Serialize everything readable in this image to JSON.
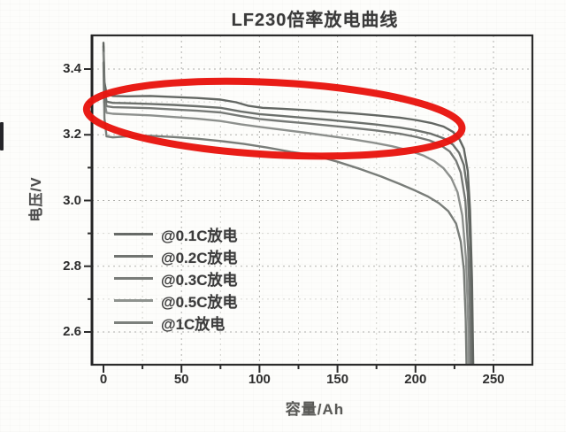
{
  "figure": {
    "kind": "scanned battery discharge chart with red highlight ellipse",
    "background_color": "#fdfdfb",
    "ink_color": "#2b2b2b",
    "grid_color": "#b0b0ac"
  },
  "chart_data": {
    "type": "line",
    "title": "LF230倍率放电曲线",
    "xlabel": "容量/Ah",
    "ylabel": "电压/V",
    "xlim": [
      -7,
      275
    ],
    "ylim": [
      2.5,
      3.5
    ],
    "x_ticks_major": [
      0,
      50,
      100,
      150,
      200,
      250
    ],
    "x_tick_labels": [
      "0",
      "50",
      "100",
      "150",
      "200",
      "250"
    ],
    "x_ticks_minor": [
      25,
      75,
      125,
      175,
      225
    ],
    "y_ticks_major": [
      3.4,
      3.2,
      3.0,
      2.8,
      2.6
    ],
    "y_tick_labels": [
      "3.4",
      "3.2",
      "3.0",
      "2.8",
      "2.6"
    ],
    "y_ticks_minor": [
      3.3,
      3.1,
      2.9,
      2.7
    ],
    "grid": "dashed, major and faint minor, both axes",
    "legend_position": "lower-left inside plot",
    "series": [
      {
        "name": "@0.1C放电",
        "color": "#565a56",
        "points": [
          [
            0,
            3.48
          ],
          [
            0.6,
            3.36
          ],
          [
            2,
            3.325
          ],
          [
            6,
            3.318
          ],
          [
            15,
            3.317
          ],
          [
            30,
            3.318
          ],
          [
            45,
            3.315
          ],
          [
            60,
            3.312
          ],
          [
            75,
            3.307
          ],
          [
            85,
            3.299
          ],
          [
            93,
            3.288
          ],
          [
            102,
            3.282
          ],
          [
            115,
            3.279
          ],
          [
            130,
            3.275
          ],
          [
            145,
            3.27
          ],
          [
            160,
            3.265
          ],
          [
            175,
            3.259
          ],
          [
            190,
            3.252
          ],
          [
            200,
            3.245
          ],
          [
            210,
            3.236
          ],
          [
            218,
            3.225
          ],
          [
            224,
            3.209
          ],
          [
            228,
            3.188
          ],
          [
            231,
            3.158
          ],
          [
            233.5,
            3.09
          ],
          [
            235,
            2.97
          ],
          [
            236.2,
            2.76
          ],
          [
            237,
            2.5
          ]
        ]
      },
      {
        "name": "@0.2C放电",
        "color": "#606460",
        "points": [
          [
            0,
            3.47
          ],
          [
            0.6,
            3.34
          ],
          [
            2,
            3.301
          ],
          [
            6,
            3.297
          ],
          [
            15,
            3.296
          ],
          [
            30,
            3.294
          ],
          [
            45,
            3.291
          ],
          [
            60,
            3.287
          ],
          [
            75,
            3.282
          ],
          [
            88,
            3.271
          ],
          [
            100,
            3.263
          ],
          [
            115,
            3.257
          ],
          [
            130,
            3.251
          ],
          [
            145,
            3.245
          ],
          [
            160,
            3.238
          ],
          [
            175,
            3.231
          ],
          [
            190,
            3.222
          ],
          [
            200,
            3.214
          ],
          [
            210,
            3.203
          ],
          [
            218,
            3.189
          ],
          [
            224,
            3.17
          ],
          [
            228,
            3.145
          ],
          [
            231,
            3.108
          ],
          [
            233.5,
            3.025
          ],
          [
            235,
            2.88
          ],
          [
            236,
            2.68
          ],
          [
            236.4,
            2.5
          ]
        ]
      },
      {
        "name": "@0.3C放电",
        "color": "#6a6e6a",
        "points": [
          [
            0,
            3.46
          ],
          [
            0.6,
            3.32
          ],
          [
            2,
            3.287
          ],
          [
            6,
            3.284
          ],
          [
            15,
            3.283
          ],
          [
            30,
            3.281
          ],
          [
            45,
            3.277
          ],
          [
            60,
            3.273
          ],
          [
            75,
            3.268
          ],
          [
            88,
            3.257
          ],
          [
            100,
            3.248
          ],
          [
            115,
            3.241
          ],
          [
            130,
            3.235
          ],
          [
            145,
            3.228
          ],
          [
            160,
            3.221
          ],
          [
            175,
            3.213
          ],
          [
            190,
            3.203
          ],
          [
            200,
            3.194
          ],
          [
            209,
            3.183
          ],
          [
            216,
            3.169
          ],
          [
            222,
            3.149
          ],
          [
            226,
            3.121
          ],
          [
            229,
            3.085
          ],
          [
            232,
            3.0
          ],
          [
            233.8,
            2.85
          ],
          [
            235,
            2.65
          ],
          [
            235.4,
            2.5
          ]
        ]
      },
      {
        "name": "@0.5C放电",
        "color": "#838783",
        "points": [
          [
            0,
            3.45
          ],
          [
            0.6,
            3.3
          ],
          [
            2,
            3.267
          ],
          [
            6,
            3.264
          ],
          [
            15,
            3.262
          ],
          [
            30,
            3.259
          ],
          [
            45,
            3.254
          ],
          [
            60,
            3.249
          ],
          [
            75,
            3.242
          ],
          [
            88,
            3.232
          ],
          [
            100,
            3.224
          ],
          [
            115,
            3.215
          ],
          [
            130,
            3.206
          ],
          [
            145,
            3.196
          ],
          [
            160,
            3.186
          ],
          [
            173,
            3.176
          ],
          [
            185,
            3.165
          ],
          [
            196,
            3.152
          ],
          [
            205,
            3.137
          ],
          [
            212,
            3.12
          ],
          [
            218,
            3.098
          ],
          [
            223,
            3.068
          ],
          [
            227,
            3.025
          ],
          [
            230,
            2.955
          ],
          [
            232.4,
            2.82
          ],
          [
            233.8,
            2.63
          ],
          [
            234.1,
            2.5
          ]
        ]
      },
      {
        "name": "@1C放电",
        "color": "#6e726e",
        "points": [
          [
            0,
            3.42
          ],
          [
            0.6,
            3.25
          ],
          [
            2,
            3.195
          ],
          [
            6,
            3.192
          ],
          [
            15,
            3.195
          ],
          [
            30,
            3.197
          ],
          [
            45,
            3.193
          ],
          [
            60,
            3.188
          ],
          [
            75,
            3.181
          ],
          [
            90,
            3.172
          ],
          [
            105,
            3.161
          ],
          [
            120,
            3.148
          ],
          [
            135,
            3.138
          ],
          [
            150,
            3.118
          ],
          [
            165,
            3.095
          ],
          [
            178,
            3.073
          ],
          [
            190,
            3.05
          ],
          [
            200,
            3.03
          ],
          [
            208,
            3.012
          ],
          [
            215,
            2.992
          ],
          [
            221,
            2.968
          ],
          [
            226,
            2.93
          ],
          [
            229,
            2.875
          ],
          [
            231,
            2.79
          ],
          [
            232.2,
            2.64
          ],
          [
            232.7,
            2.5
          ]
        ]
      }
    ],
    "annotation": {
      "shape": "ellipse",
      "color": "#e8140e",
      "center_ah": 109.5,
      "center_v": 3.249,
      "radius_ah": 120.5,
      "radius_v": 0.11,
      "rotation_deg": 3,
      "stroke_px": 8
    }
  },
  "legend": {
    "items": [
      {
        "label": "@0.1C放电",
        "color": "#565a56"
      },
      {
        "label": "@0.2C放电",
        "color": "#606460"
      },
      {
        "label": "@0.3C放电",
        "color": "#6a6e6a"
      },
      {
        "label": "@0.5C放电",
        "color": "#838783"
      },
      {
        "label": "@1C放电",
        "color": "#6e726e"
      }
    ]
  }
}
